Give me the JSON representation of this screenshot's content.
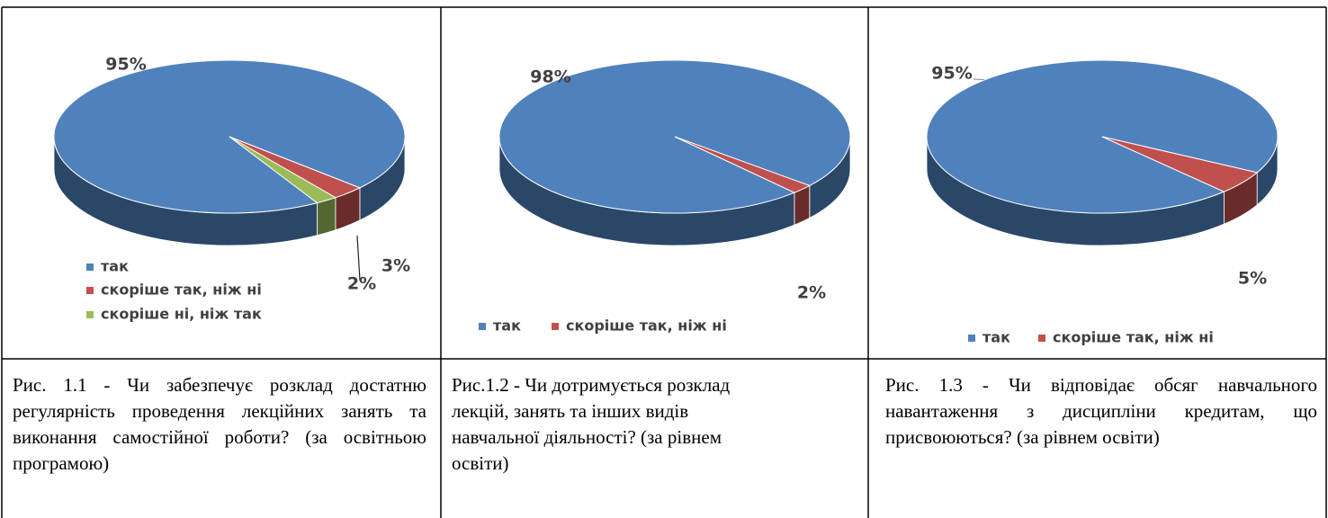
{
  "chart_data": [
    {
      "type": "pie",
      "categories": [
        "так",
        "скоріше так, ніж ні",
        "скоріше ні, ніж так"
      ],
      "values": [
        95,
        3,
        2
      ],
      "value_labels": [
        "95%",
        "3%",
        "2%"
      ],
      "colors": [
        "#4f81bd",
        "#c0504d",
        "#9bbb59"
      ],
      "legend": "bottom-left"
    },
    {
      "type": "pie",
      "categories": [
        "так",
        "скоріше так, ніж ні"
      ],
      "values": [
        98,
        2
      ],
      "value_labels": [
        "98%",
        "2%"
      ],
      "colors": [
        "#4f81bd",
        "#c0504d"
      ],
      "legend": "bottom"
    },
    {
      "type": "pie",
      "categories": [
        "так",
        "скоріше так, ніж ні"
      ],
      "values": [
        95,
        5
      ],
      "value_labels": [
        "95%",
        "5%"
      ],
      "colors": [
        "#4f81bd",
        "#c0504d"
      ],
      "legend": "bottom"
    }
  ],
  "captions": [
    "Рис. 1.1 - Чи забезпечує розклад достатню регулярність проведення лекційних занять та виконання самостійної роботи? (за освітньою програмою)",
    "Рис.1.2 - Чи дотримується розклад лекцій, занять та інших видів навчальної діяльності? (за рівнем освіти)",
    "Рис. 1.3 - Чи відповідає обсяг навчального навантаження з дисципліни кредитам, що присвоюються? (за рівнем освіти)"
  ]
}
